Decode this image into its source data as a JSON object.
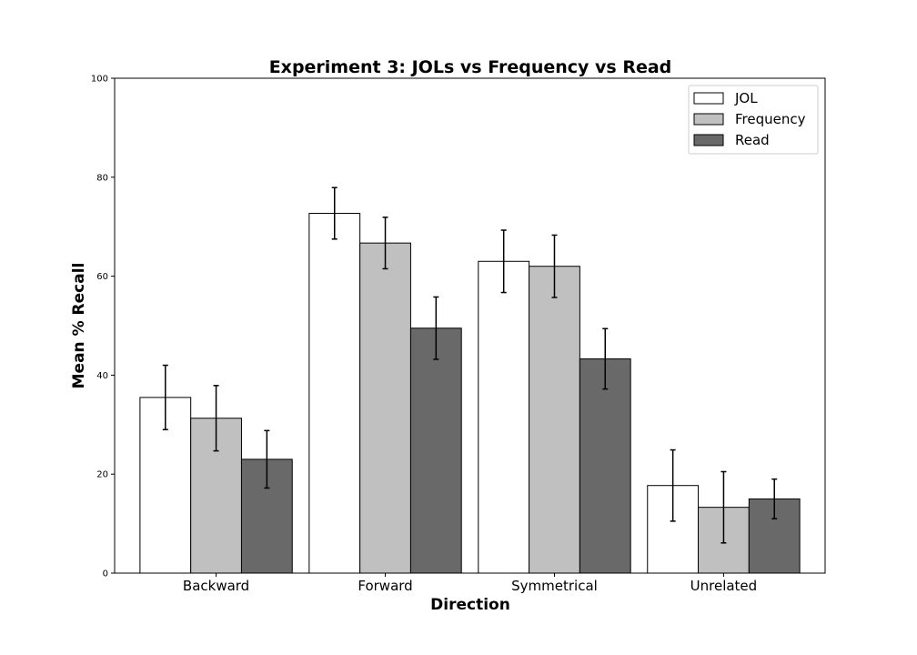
{
  "chart_data": {
    "type": "bar",
    "title": "Experiment 3: JOLs vs Frequency vs Read",
    "xlabel": "Direction",
    "ylabel": "Mean % Recall",
    "ylim": [
      0,
      100
    ],
    "yticks": [
      0,
      20,
      40,
      60,
      80,
      100
    ],
    "categories": [
      "Backward",
      "Forward",
      "Symmetrical",
      "Unrelated"
    ],
    "series": [
      {
        "name": "JOL",
        "color": "#ffffff",
        "values": [
          35.5,
          72.7,
          63.0,
          17.7
        ],
        "errors": [
          6.5,
          5.2,
          6.3,
          7.2
        ]
      },
      {
        "name": "Frequency",
        "color": "#c0c0c0",
        "values": [
          31.3,
          66.7,
          62.0,
          13.3
        ],
        "errors": [
          6.6,
          5.2,
          6.3,
          7.2
        ]
      },
      {
        "name": "Read",
        "color": "#696969",
        "values": [
          23.0,
          49.5,
          43.3,
          15.0
        ],
        "errors": [
          5.8,
          6.3,
          6.1,
          4.0
        ]
      }
    ],
    "legend_position": "top-right",
    "grid": false
  }
}
